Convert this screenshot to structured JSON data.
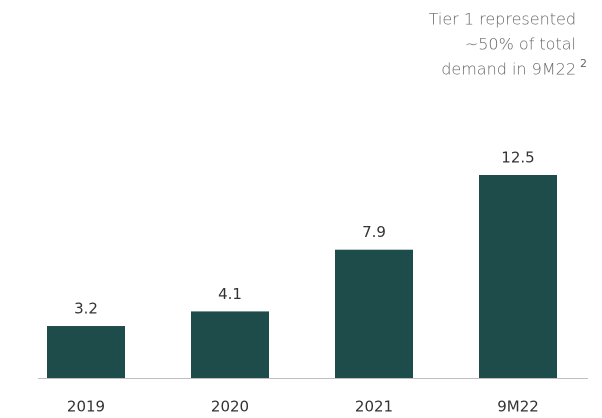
{
  "chart_data": {
    "type": "bar",
    "annotation": [
      "Tier 1 represented",
      "~50% of total",
      "demand in 9M22"
    ],
    "annotation_footnote": "2",
    "categories": [
      "2019",
      "2020",
      "2021",
      "9M22"
    ],
    "values": [
      3.2,
      4.1,
      7.9,
      12.5
    ],
    "color": "#1d4c4a"
  }
}
